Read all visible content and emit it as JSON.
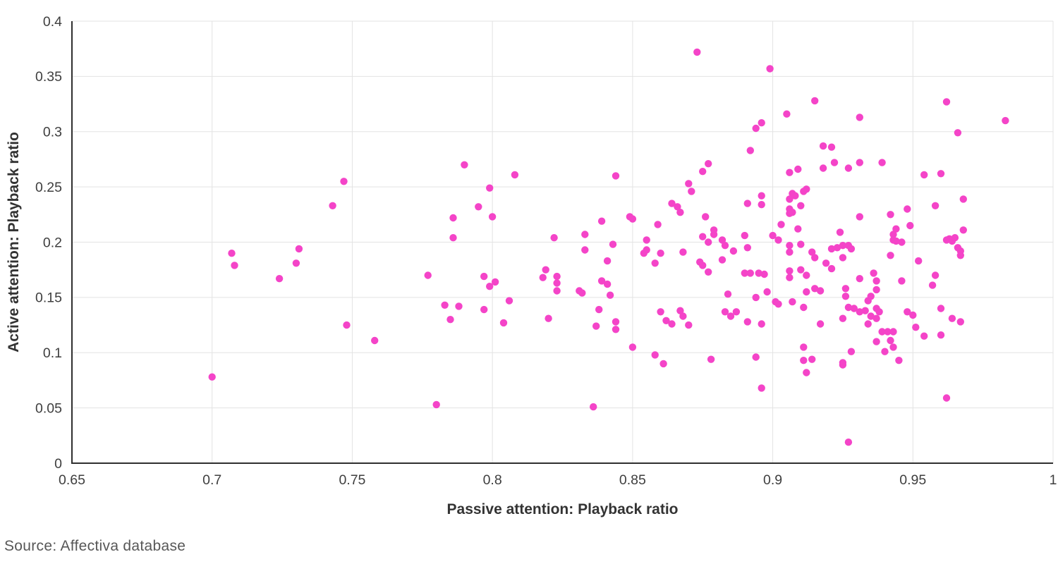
{
  "footer": {
    "source": "Source: Affectiva database"
  },
  "colors": {
    "marker": "#F444C8",
    "grid": "#E3E3E3",
    "axis": "#2F2F2F",
    "tick_text": "#3E3E3E",
    "title_text": "#333333",
    "source_text": "#575757",
    "background": "#FFFFFF"
  },
  "chart_data": {
    "type": "scatter",
    "title": "",
    "xlabel": "Passive attention: Playback ratio",
    "ylabel": "Active attention: Playback ratio",
    "xlim": [
      0.65,
      1.0
    ],
    "ylim": [
      0,
      0.4
    ],
    "grid": true,
    "legend_position": "none",
    "marker_radius": 5.2,
    "x_ticks": [
      0.65,
      0.7,
      0.75,
      0.8,
      0.85,
      0.9,
      0.95,
      1
    ],
    "x_tick_labels": [
      "0.65",
      "0.7",
      "0.75",
      "0.8",
      "0.85",
      "0.9",
      "0.95",
      "1"
    ],
    "y_ticks": [
      0,
      0.05,
      0.1,
      0.15,
      0.2,
      0.25,
      0.3,
      0.35,
      0.4
    ],
    "y_tick_labels": [
      "0",
      "0.05",
      "0.1",
      "0.15",
      "0.2",
      "0.25",
      "0.3",
      "0.35",
      "0.4"
    ],
    "points": [
      [
        0.7,
        0.078
      ],
      [
        0.707,
        0.19
      ],
      [
        0.708,
        0.179
      ],
      [
        0.724,
        0.167
      ],
      [
        0.73,
        0.181
      ],
      [
        0.731,
        0.194
      ],
      [
        0.743,
        0.233
      ],
      [
        0.747,
        0.255
      ],
      [
        0.748,
        0.125
      ],
      [
        0.758,
        0.111
      ],
      [
        0.777,
        0.17
      ],
      [
        0.78,
        0.053
      ],
      [
        0.783,
        0.143
      ],
      [
        0.785,
        0.13
      ],
      [
        0.786,
        0.222
      ],
      [
        0.786,
        0.204
      ],
      [
        0.788,
        0.142
      ],
      [
        0.79,
        0.27
      ],
      [
        0.795,
        0.232
      ],
      [
        0.797,
        0.169
      ],
      [
        0.797,
        0.139
      ],
      [
        0.799,
        0.249
      ],
      [
        0.799,
        0.16
      ],
      [
        0.8,
        0.223
      ],
      [
        0.801,
        0.164
      ],
      [
        0.804,
        0.127
      ],
      [
        0.806,
        0.147
      ],
      [
        0.808,
        0.261
      ],
      [
        0.818,
        0.168
      ],
      [
        0.819,
        0.175
      ],
      [
        0.82,
        0.131
      ],
      [
        0.822,
        0.204
      ],
      [
        0.823,
        0.169
      ],
      [
        0.823,
        0.163
      ],
      [
        0.823,
        0.156
      ],
      [
        0.831,
        0.156
      ],
      [
        0.832,
        0.154
      ],
      [
        0.833,
        0.207
      ],
      [
        0.833,
        0.193
      ],
      [
        0.836,
        0.051
      ],
      [
        0.837,
        0.124
      ],
      [
        0.838,
        0.139
      ],
      [
        0.839,
        0.219
      ],
      [
        0.839,
        0.165
      ],
      [
        0.841,
        0.183
      ],
      [
        0.841,
        0.162
      ],
      [
        0.842,
        0.152
      ],
      [
        0.843,
        0.198
      ],
      [
        0.844,
        0.26
      ],
      [
        0.844,
        0.128
      ],
      [
        0.844,
        0.121
      ],
      [
        0.849,
        0.223
      ],
      [
        0.85,
        0.221
      ],
      [
        0.85,
        0.105
      ],
      [
        0.854,
        0.19
      ],
      [
        0.855,
        0.202
      ],
      [
        0.855,
        0.193
      ],
      [
        0.858,
        0.181
      ],
      [
        0.858,
        0.098
      ],
      [
        0.859,
        0.216
      ],
      [
        0.86,
        0.19
      ],
      [
        0.86,
        0.137
      ],
      [
        0.861,
        0.09
      ],
      [
        0.862,
        0.129
      ],
      [
        0.864,
        0.235
      ],
      [
        0.864,
        0.126
      ],
      [
        0.866,
        0.232
      ],
      [
        0.867,
        0.227
      ],
      [
        0.867,
        0.138
      ],
      [
        0.868,
        0.191
      ],
      [
        0.868,
        0.133
      ],
      [
        0.87,
        0.253
      ],
      [
        0.87,
        0.125
      ],
      [
        0.871,
        0.246
      ],
      [
        0.873,
        0.372
      ],
      [
        0.874,
        0.182
      ],
      [
        0.875,
        0.264
      ],
      [
        0.875,
        0.205
      ],
      [
        0.875,
        0.179
      ],
      [
        0.876,
        0.223
      ],
      [
        0.877,
        0.271
      ],
      [
        0.877,
        0.2
      ],
      [
        0.877,
        0.173
      ],
      [
        0.878,
        0.094
      ],
      [
        0.879,
        0.211
      ],
      [
        0.879,
        0.207
      ],
      [
        0.882,
        0.202
      ],
      [
        0.882,
        0.184
      ],
      [
        0.883,
        0.197
      ],
      [
        0.883,
        0.137
      ],
      [
        0.884,
        0.153
      ],
      [
        0.885,
        0.133
      ],
      [
        0.886,
        0.192
      ],
      [
        0.887,
        0.137
      ],
      [
        0.89,
        0.206
      ],
      [
        0.89,
        0.172
      ],
      [
        0.891,
        0.235
      ],
      [
        0.891,
        0.195
      ],
      [
        0.891,
        0.128
      ],
      [
        0.892,
        0.283
      ],
      [
        0.892,
        0.172
      ],
      [
        0.894,
        0.303
      ],
      [
        0.894,
        0.15
      ],
      [
        0.894,
        0.096
      ],
      [
        0.895,
        0.172
      ],
      [
        0.896,
        0.308
      ],
      [
        0.896,
        0.242
      ],
      [
        0.896,
        0.234
      ],
      [
        0.896,
        0.126
      ],
      [
        0.896,
        0.068
      ],
      [
        0.897,
        0.171
      ],
      [
        0.898,
        0.155
      ],
      [
        0.899,
        0.357
      ],
      [
        0.9,
        0.206
      ],
      [
        0.901,
        0.146
      ],
      [
        0.902,
        0.202
      ],
      [
        0.902,
        0.144
      ],
      [
        0.903,
        0.216
      ],
      [
        0.905,
        0.316
      ],
      [
        0.906,
        0.263
      ],
      [
        0.906,
        0.239
      ],
      [
        0.906,
        0.23
      ],
      [
        0.906,
        0.226
      ],
      [
        0.906,
        0.197
      ],
      [
        0.906,
        0.191
      ],
      [
        0.906,
        0.174
      ],
      [
        0.906,
        0.168
      ],
      [
        0.907,
        0.244
      ],
      [
        0.907,
        0.227
      ],
      [
        0.907,
        0.146
      ],
      [
        0.908,
        0.242
      ],
      [
        0.909,
        0.266
      ],
      [
        0.909,
        0.212
      ],
      [
        0.91,
        0.233
      ],
      [
        0.91,
        0.198
      ],
      [
        0.91,
        0.175
      ],
      [
        0.911,
        0.246
      ],
      [
        0.911,
        0.141
      ],
      [
        0.911,
        0.105
      ],
      [
        0.911,
        0.093
      ],
      [
        0.912,
        0.248
      ],
      [
        0.912,
        0.155
      ],
      [
        0.912,
        0.17
      ],
      [
        0.912,
        0.082
      ],
      [
        0.914,
        0.191
      ],
      [
        0.914,
        0.094
      ],
      [
        0.915,
        0.328
      ],
      [
        0.915,
        0.186
      ],
      [
        0.915,
        0.158
      ],
      [
        0.917,
        0.156
      ],
      [
        0.917,
        0.126
      ],
      [
        0.918,
        0.287
      ],
      [
        0.918,
        0.267
      ],
      [
        0.919,
        0.181
      ],
      [
        0.921,
        0.286
      ],
      [
        0.921,
        0.194
      ],
      [
        0.921,
        0.176
      ],
      [
        0.922,
        0.272
      ],
      [
        0.923,
        0.195
      ],
      [
        0.924,
        0.209
      ],
      [
        0.925,
        0.197
      ],
      [
        0.925,
        0.186
      ],
      [
        0.925,
        0.131
      ],
      [
        0.925,
        0.091
      ],
      [
        0.925,
        0.089
      ],
      [
        0.926,
        0.158
      ],
      [
        0.926,
        0.151
      ],
      [
        0.927,
        0.267
      ],
      [
        0.927,
        0.197
      ],
      [
        0.927,
        0.141
      ],
      [
        0.927,
        0.019
      ],
      [
        0.928,
        0.194
      ],
      [
        0.928,
        0.101
      ],
      [
        0.929,
        0.14
      ],
      [
        0.931,
        0.313
      ],
      [
        0.931,
        0.272
      ],
      [
        0.931,
        0.223
      ],
      [
        0.931,
        0.167
      ],
      [
        0.931,
        0.137
      ],
      [
        0.933,
        0.138
      ],
      [
        0.934,
        0.147
      ],
      [
        0.934,
        0.126
      ],
      [
        0.935,
        0.151
      ],
      [
        0.935,
        0.133
      ],
      [
        0.936,
        0.172
      ],
      [
        0.937,
        0.165
      ],
      [
        0.937,
        0.157
      ],
      [
        0.937,
        0.14
      ],
      [
        0.937,
        0.131
      ],
      [
        0.937,
        0.11
      ],
      [
        0.938,
        0.137
      ],
      [
        0.939,
        0.272
      ],
      [
        0.939,
        0.119
      ],
      [
        0.94,
        0.101
      ],
      [
        0.941,
        0.119
      ],
      [
        0.942,
        0.225
      ],
      [
        0.942,
        0.188
      ],
      [
        0.942,
        0.111
      ],
      [
        0.943,
        0.119
      ],
      [
        0.943,
        0.105
      ],
      [
        0.944,
        0.212
      ],
      [
        0.943,
        0.207
      ],
      [
        0.943,
        0.202
      ],
      [
        0.944,
        0.201
      ],
      [
        0.945,
        0.093
      ],
      [
        0.946,
        0.2
      ],
      [
        0.946,
        0.165
      ],
      [
        0.948,
        0.23
      ],
      [
        0.948,
        0.137
      ],
      [
        0.949,
        0.215
      ],
      [
        0.95,
        0.134
      ],
      [
        0.951,
        0.123
      ],
      [
        0.952,
        0.183
      ],
      [
        0.954,
        0.261
      ],
      [
        0.954,
        0.115
      ],
      [
        0.957,
        0.161
      ],
      [
        0.958,
        0.233
      ],
      [
        0.958,
        0.17
      ],
      [
        0.96,
        0.262
      ],
      [
        0.96,
        0.14
      ],
      [
        0.96,
        0.116
      ],
      [
        0.962,
        0.327
      ],
      [
        0.962,
        0.202
      ],
      [
        0.962,
        0.059
      ],
      [
        0.963,
        0.203
      ],
      [
        0.964,
        0.201
      ],
      [
        0.964,
        0.131
      ],
      [
        0.965,
        0.204
      ],
      [
        0.966,
        0.299
      ],
      [
        0.966,
        0.195
      ],
      [
        0.967,
        0.192
      ],
      [
        0.967,
        0.188
      ],
      [
        0.967,
        0.128
      ],
      [
        0.968,
        0.239
      ],
      [
        0.968,
        0.211
      ],
      [
        0.983,
        0.31
      ]
    ]
  }
}
